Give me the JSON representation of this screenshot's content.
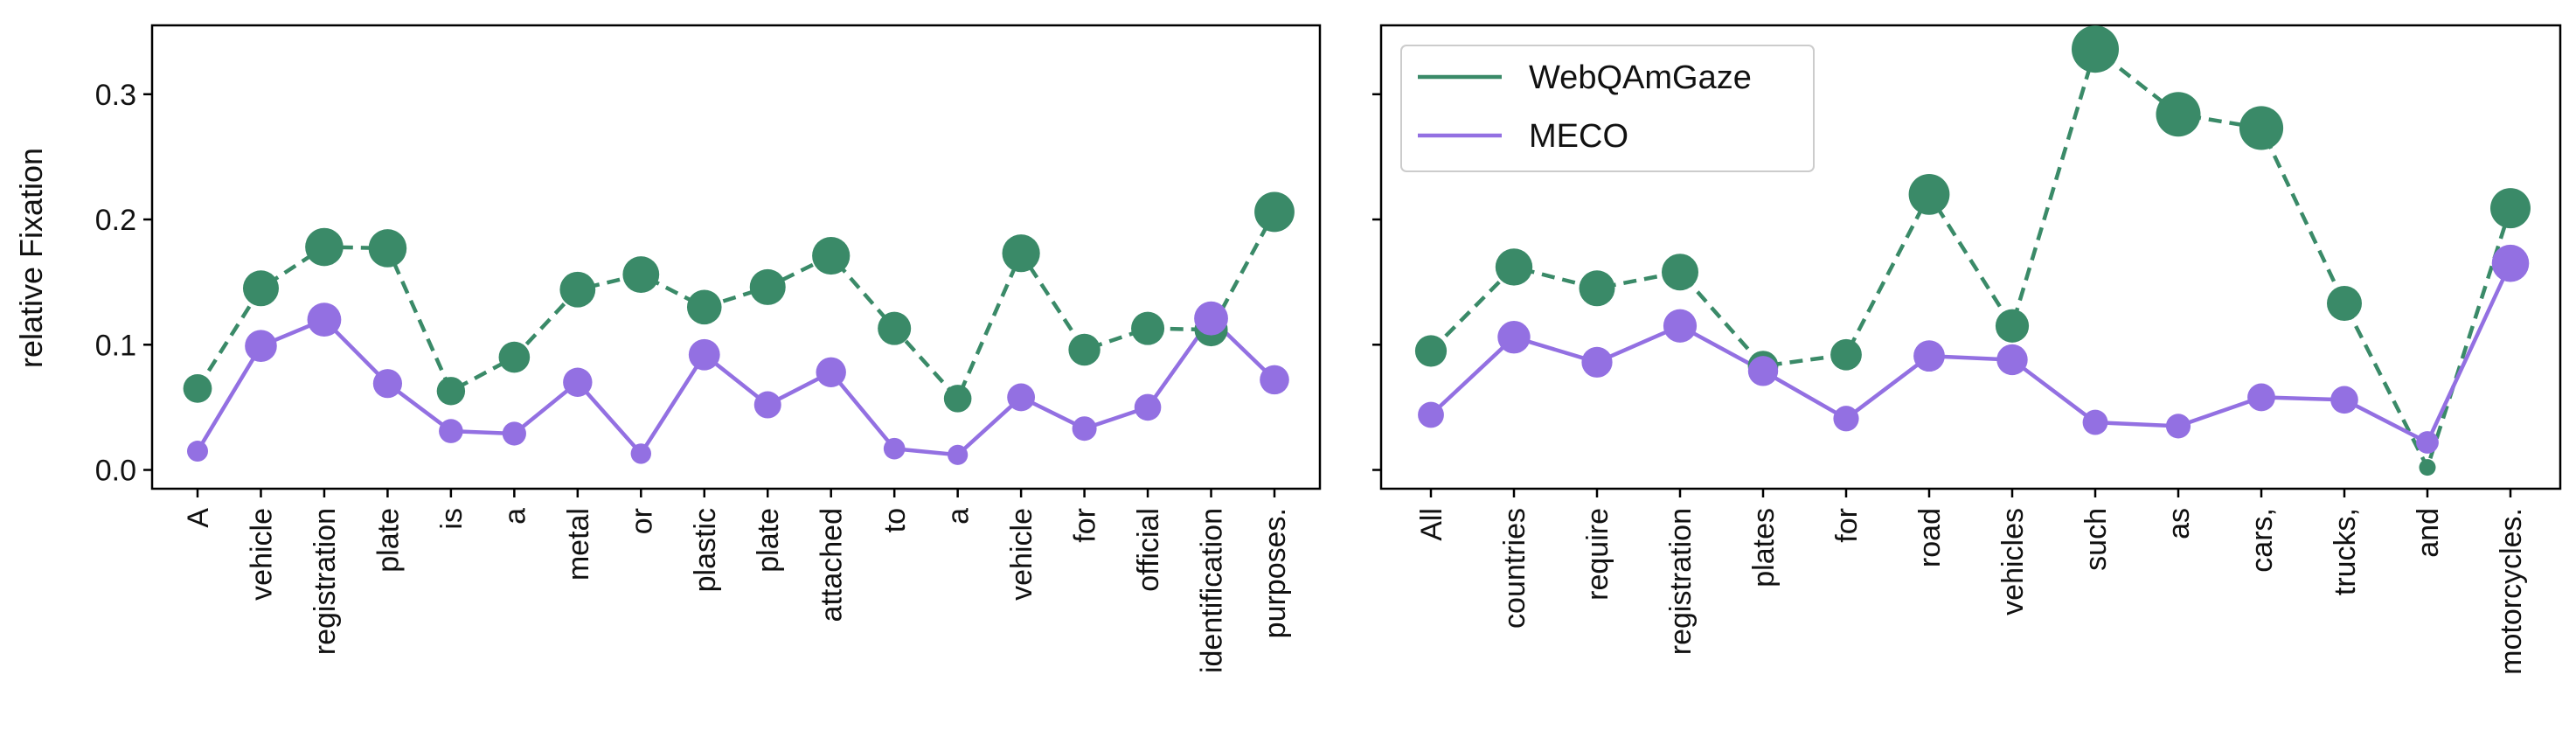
{
  "chart_data": [
    {
      "type": "line",
      "panel": "left",
      "ylabel": "relative Fixation",
      "ylim": [
        -0.015,
        0.355
      ],
      "yticks": [
        0.0,
        0.1,
        0.2,
        0.3
      ],
      "ytick_labels": [
        "0.0",
        "0.1",
        "0.2",
        "0.3"
      ],
      "legend": false,
      "grid": false,
      "marker_size_encodes_value": true,
      "categories": [
        "A",
        "vehicle",
        "registration",
        "plate",
        "is",
        "a",
        "metal",
        "or",
        "plastic",
        "plate",
        "attached",
        "to",
        "a",
        "vehicle",
        "for",
        "official",
        "identification",
        "purposes."
      ],
      "series": [
        {
          "name": "WebQAmGaze",
          "color": "#3a8a68",
          "line_style": "dashed",
          "values": [
            0.065,
            0.145,
            0.178,
            0.177,
            0.063,
            0.09,
            0.144,
            0.156,
            0.13,
            0.146,
            0.171,
            0.113,
            0.057,
            0.173,
            0.096,
            0.113,
            0.112,
            0.206
          ]
        },
        {
          "name": "MECO",
          "color": "#9370e2",
          "line_style": "solid",
          "values": [
            0.015,
            0.099,
            0.12,
            0.069,
            0.031,
            0.029,
            0.07,
            0.013,
            0.092,
            0.052,
            0.078,
            0.017,
            0.012,
            0.058,
            0.033,
            0.05,
            0.121,
            0.072
          ]
        }
      ]
    },
    {
      "type": "line",
      "panel": "right",
      "ylim": [
        -0.015,
        0.355
      ],
      "yticks": [
        0.0,
        0.1,
        0.2,
        0.3
      ],
      "shared_y": true,
      "legend": true,
      "legend_position": "top-left",
      "grid": false,
      "marker_size_encodes_value": true,
      "categories": [
        "All",
        "countries",
        "require",
        "registration",
        "plates",
        "for",
        "road",
        "vehicles",
        "such",
        "as",
        "cars,",
        "trucks,",
        "and",
        "motorcycles."
      ],
      "series": [
        {
          "name": "WebQAmGaze",
          "color": "#3a8a68",
          "line_style": "dashed",
          "values": [
            0.095,
            0.162,
            0.145,
            0.158,
            0.083,
            0.092,
            0.22,
            0.115,
            0.336,
            0.284,
            0.273,
            0.133,
            0.002,
            0.209
          ]
        },
        {
          "name": "MECO",
          "color": "#9370e2",
          "line_style": "solid",
          "values": [
            0.044,
            0.106,
            0.086,
            0.115,
            0.079,
            0.041,
            0.091,
            0.088,
            0.038,
            0.035,
            0.058,
            0.056,
            0.022,
            0.165
          ]
        }
      ]
    }
  ]
}
